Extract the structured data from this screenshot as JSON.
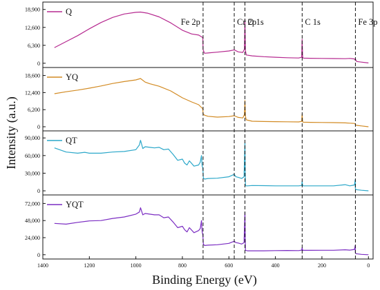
{
  "colors": {
    "Q": "#b5288f",
    "YQ": "#d28a22",
    "QT": "#2aa7c9",
    "YQT": "#7a2bc2",
    "axis": "#111111",
    "peak_line": "#111111"
  },
  "chart_data": {
    "type": "line",
    "xlabel": "Binding Energy (eV)",
    "ylabel": "Intensity (a.u.)",
    "x_reversed": true,
    "xlim": [
      1400,
      -20
    ],
    "x_ticks": [
      1400,
      1200,
      1000,
      800,
      600,
      400,
      200,
      0
    ],
    "x_tick_labels": [
      "1400",
      "1200",
      "1000",
      "800",
      "600",
      "400",
      "200",
      "0"
    ],
    "peak_markers": [
      {
        "label": "Fe 2p",
        "x": 711
      },
      {
        "label": "Cr 2p",
        "x": 577
      },
      {
        "label": "O 1s",
        "x": 531
      },
      {
        "label": "C 1s",
        "x": 285
      },
      {
        "label": "Fe 3p",
        "x": 56
      }
    ],
    "panels": [
      {
        "name": "Q",
        "ylim": [
          -1500,
          21500
        ],
        "y_ticks": [
          0,
          6300,
          12600,
          18900
        ],
        "y_tick_labels": [
          "0",
          "6,300",
          "12,600",
          "18,900"
        ],
        "x": [
          1350,
          1300,
          1250,
          1200,
          1150,
          1100,
          1050,
          1000,
          980,
          950,
          900,
          850,
          800,
          760,
          730,
          712,
          711,
          705,
          690,
          650,
          600,
          577,
          560,
          540,
          533,
          531,
          529,
          525,
          500,
          450,
          400,
          350,
          300,
          287,
          285,
          283,
          280,
          250,
          200,
          150,
          100,
          80,
          60,
          57,
          56,
          50,
          30,
          0
        ],
        "values": [
          5500,
          7600,
          9700,
          12100,
          14300,
          16100,
          17300,
          17900,
          18000,
          17600,
          16300,
          14200,
          11600,
          10300,
          9900,
          9000,
          4800,
          3500,
          3600,
          3900,
          4300,
          4700,
          4000,
          3800,
          5000,
          15500,
          4500,
          2900,
          2600,
          2300,
          2100,
          1950,
          1850,
          2100,
          8400,
          2200,
          1800,
          1750,
          1700,
          1650,
          1600,
          1700,
          1500,
          1100,
          1400,
          600,
          400,
          100
        ]
      },
      {
        "name": "YQ",
        "ylim": [
          -1500,
          21500
        ],
        "y_ticks": [
          0,
          6200,
          12400,
          18600
        ],
        "y_tick_labels": [
          "0",
          "6,200",
          "12,400",
          "18,600"
        ],
        "x": [
          1350,
          1300,
          1250,
          1200,
          1150,
          1100,
          1050,
          1000,
          980,
          960,
          940,
          900,
          850,
          800,
          760,
          730,
          712,
          711,
          705,
          690,
          650,
          600,
          577,
          560,
          540,
          533,
          531,
          529,
          525,
          500,
          450,
          400,
          350,
          300,
          287,
          285,
          283,
          280,
          250,
          200,
          150,
          100,
          80,
          60,
          57,
          56,
          50,
          30,
          0
        ],
        "values": [
          12000,
          12700,
          13300,
          14000,
          14800,
          15700,
          16400,
          17000,
          17500,
          16200,
          15600,
          14700,
          13000,
          10500,
          9000,
          8000,
          6500,
          4700,
          4200,
          3800,
          3500,
          3700,
          4000,
          3400,
          3200,
          4500,
          9500,
          3800,
          2500,
          2000,
          1900,
          1850,
          1800,
          1750,
          1950,
          4500,
          1800,
          1650,
          1600,
          1550,
          1500,
          1400,
          1300,
          1200,
          1000,
          700,
          500,
          300,
          0
        ]
      },
      {
        "name": "QT",
        "ylim": [
          -7000,
          102000
        ],
        "y_ticks": [
          0,
          30000,
          60000,
          90000
        ],
        "y_tick_labels": [
          "0",
          "30,000",
          "60,000",
          "90,000"
        ],
        "x": [
          1350,
          1300,
          1250,
          1220,
          1200,
          1150,
          1100,
          1050,
          1000,
          985,
          980,
          970,
          960,
          940,
          920,
          900,
          880,
          860,
          840,
          820,
          800,
          790,
          780,
          770,
          750,
          730,
          723,
          718,
          715,
          712,
          710,
          705,
          690,
          650,
          600,
          577,
          570,
          560,
          545,
          535,
          531,
          529,
          527,
          520,
          500,
          450,
          400,
          350,
          300,
          287,
          285,
          283,
          280,
          250,
          200,
          150,
          100,
          80,
          60,
          57,
          56,
          53,
          30,
          0
        ],
        "values": [
          73000,
          66000,
          64000,
          65500,
          64000,
          64000,
          66000,
          67000,
          70000,
          78000,
          86000,
          72000,
          75000,
          74000,
          73000,
          74000,
          70000,
          71000,
          62000,
          52000,
          54000,
          47000,
          44000,
          51000,
          42000,
          44000,
          49000,
          60000,
          42000,
          39000,
          22000,
          20000,
          21000,
          21500,
          24000,
          28000,
          24000,
          23000,
          21000,
          24000,
          82000,
          9500,
          8500,
          8500,
          9000,
          8800,
          8500,
          8500,
          8500,
          9000,
          16000,
          9000,
          8500,
          8500,
          8500,
          8500,
          10500,
          8500,
          10000,
          19000,
          3500,
          2000,
          1000,
          0
        ]
      },
      {
        "name": "YQT",
        "ylim": [
          -6000,
          84000
        ],
        "y_ticks": [
          0,
          24000,
          48000,
          72000
        ],
        "y_tick_labels": [
          "0",
          "24,000",
          "48,000",
          "72,000"
        ],
        "x": [
          1350,
          1300,
          1250,
          1200,
          1150,
          1100,
          1050,
          1000,
          985,
          980,
          970,
          960,
          940,
          920,
          900,
          880,
          860,
          840,
          820,
          800,
          790,
          780,
          770,
          750,
          730,
          723,
          718,
          715,
          712,
          710,
          705,
          690,
          650,
          600,
          577,
          570,
          560,
          545,
          535,
          531,
          529,
          527,
          520,
          500,
          450,
          400,
          350,
          300,
          287,
          285,
          283,
          280,
          250,
          200,
          150,
          100,
          80,
          60,
          57,
          56,
          53,
          30,
          0
        ],
        "values": [
          44000,
          43000,
          45500,
          47500,
          48000,
          51000,
          53000,
          57000,
          60000,
          66000,
          56000,
          58000,
          57000,
          56000,
          56000,
          52000,
          53000,
          46000,
          38000,
          40000,
          35000,
          32000,
          38000,
          31000,
          34000,
          37000,
          48000,
          32000,
          28000,
          15000,
          13000,
          13500,
          14000,
          16000,
          19000,
          17000,
          16500,
          15000,
          17000,
          60000,
          6500,
          6000,
          5500,
          5500,
          5500,
          5800,
          6000,
          5800,
          6500,
          10000,
          6000,
          6200,
          6200,
          6300,
          6300,
          7000,
          6500,
          7500,
          13000,
          2500,
          1500,
          500,
          0
        ]
      }
    ]
  }
}
